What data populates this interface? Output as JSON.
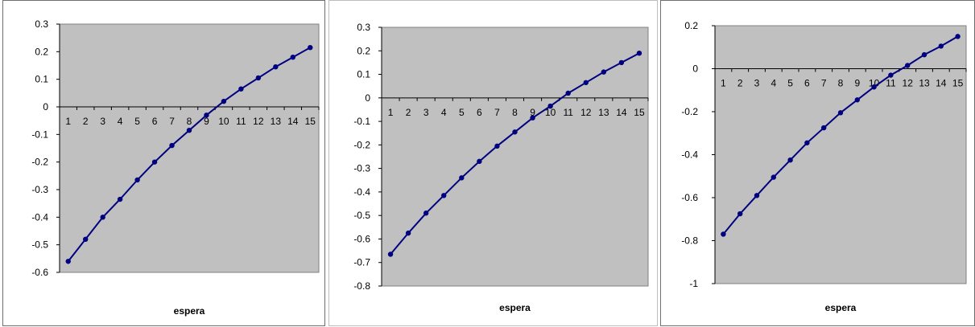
{
  "chart_data": [
    {
      "type": "line",
      "xlabel": "espera",
      "ylim": [
        -0.6,
        0.3
      ],
      "yticks": [
        "0.3",
        "0.2",
        "0.1",
        "0",
        "-0.1",
        "-0.2",
        "-0.3",
        "-0.4",
        "-0.5",
        "-0.6"
      ],
      "categories": [
        "1",
        "2",
        "3",
        "4",
        "5",
        "6",
        "7",
        "8",
        "9",
        "10",
        "11",
        "12",
        "13",
        "14",
        "15"
      ],
      "series": [
        {
          "values": [
            -0.56,
            -0.48,
            -0.4,
            -0.335,
            -0.265,
            -0.2,
            -0.14,
            -0.085,
            -0.03,
            0.02,
            0.065,
            0.105,
            0.145,
            0.18,
            0.215
          ]
        }
      ],
      "plot_bg": "#c0c0c0",
      "line_color": "#000080",
      "grid": false
    },
    {
      "type": "line",
      "xlabel": "espera",
      "ylim": [
        -0.8,
        0.3
      ],
      "yticks": [
        "0.3",
        "0.2",
        "0.1",
        "0",
        "-0.1",
        "-0.2",
        "-0.3",
        "-0.4",
        "-0.5",
        "-0.6",
        "-0.7",
        "-0.8"
      ],
      "categories": [
        "1",
        "2",
        "3",
        "4",
        "5",
        "6",
        "7",
        "8",
        "9",
        "10",
        "11",
        "12",
        "13",
        "14",
        "15"
      ],
      "series": [
        {
          "values": [
            -0.665,
            -0.575,
            -0.49,
            -0.415,
            -0.34,
            -0.27,
            -0.205,
            -0.145,
            -0.085,
            -0.035,
            0.02,
            0.065,
            0.11,
            0.15,
            0.19
          ]
        }
      ],
      "plot_bg": "#c0c0c0",
      "line_color": "#000080",
      "grid": false
    },
    {
      "type": "line",
      "xlabel": "espera",
      "ylim": [
        -1,
        0.2
      ],
      "yticks": [
        "0.2",
        "0",
        "-0.2",
        "-0.4",
        "-0.6",
        "-0.8",
        "-1"
      ],
      "categories": [
        "1",
        "2",
        "3",
        "4",
        "5",
        "6",
        "7",
        "8",
        "9",
        "10",
        "11",
        "12",
        "13",
        "14",
        "15"
      ],
      "series": [
        {
          "values": [
            -0.77,
            -0.675,
            -0.59,
            -0.505,
            -0.425,
            -0.345,
            -0.275,
            -0.205,
            -0.145,
            -0.085,
            -0.03,
            0.015,
            0.065,
            0.105,
            0.15
          ]
        }
      ],
      "plot_bg": "#c0c0c0",
      "line_color": "#000080",
      "grid": false
    }
  ]
}
